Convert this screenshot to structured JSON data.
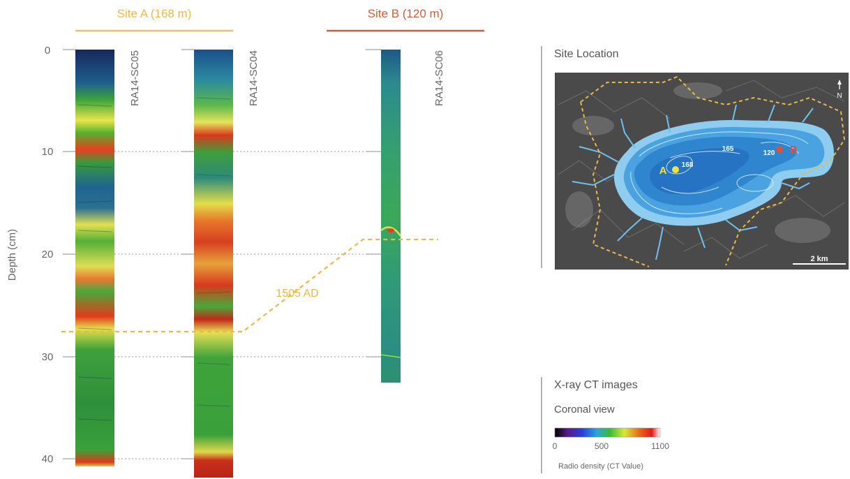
{
  "sites": [
    {
      "label": "Site A (168 m)",
      "color": "#e8b84a"
    },
    {
      "label": "Site B (120 m)",
      "color": "#c8603e"
    }
  ],
  "depth_axis": {
    "label": "Depth (cm)",
    "min": 0,
    "max": 40,
    "ticks": [
      "0",
      "10",
      "20",
      "30",
      "40"
    ]
  },
  "cores": [
    {
      "name": "RA14-SC05",
      "site": "A",
      "depth_max": 40.5
    },
    {
      "name": "RA14-SC04",
      "site": "A",
      "depth_max": 41.5
    },
    {
      "name": "RA14-SC06",
      "site": "B",
      "depth_max": 32.5
    }
  ],
  "event": {
    "label": "1505 AD",
    "depth_site_a": 27.5,
    "depth_site_b": 18.5,
    "color": "#e8b84a"
  },
  "map": {
    "title": "Site Location",
    "north_label": "N",
    "scale_label": "2 km",
    "contour_labels": [
      "168",
      "165",
      "120"
    ],
    "site_a_label": "A",
    "site_b_label": "B",
    "site_a_color": "#f1e23a",
    "site_b_color": "#d9533a"
  },
  "legend": {
    "title": "X-ray CT images",
    "subtitle": "Coronal view",
    "scale_min": "0",
    "scale_mid": "500",
    "scale_max": "1100",
    "caption": "Radio density (CT Value)"
  }
}
